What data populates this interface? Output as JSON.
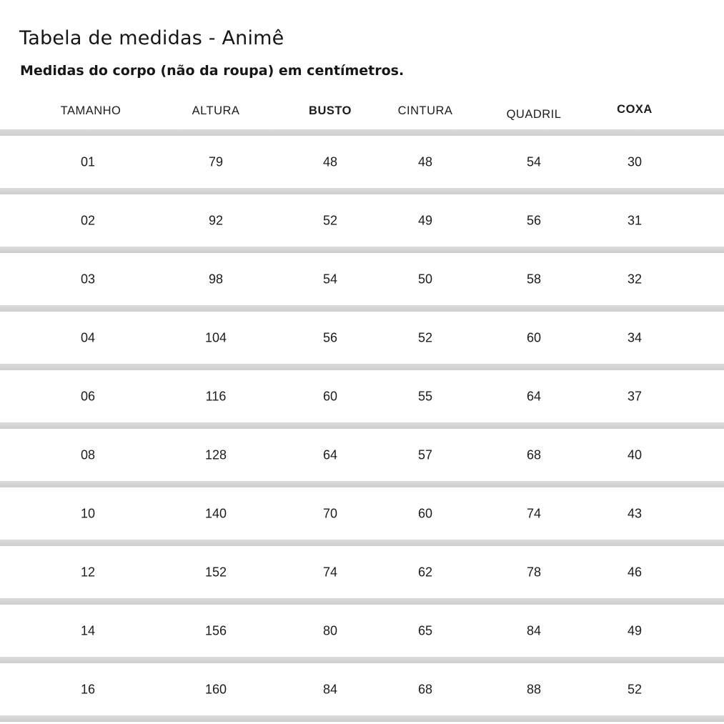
{
  "page": {
    "title": "Tabela de medidas - Animê",
    "subtitle": "Medidas do corpo (não da roupa) em centímetros."
  },
  "chart_data": {
    "type": "table",
    "title": "Tabela de medidas - Animê",
    "subtitle": "Medidas do corpo (não da roupa) em centímetros.",
    "columns": [
      "TAMANHO",
      "ALTURA",
      "BUSTO",
      "CINTURA",
      "QUADRIL",
      "COXA"
    ],
    "rows": [
      [
        "01",
        "79",
        "48",
        "48",
        "54",
        "30"
      ],
      [
        "02",
        "92",
        "52",
        "49",
        "56",
        "31"
      ],
      [
        "03",
        "98",
        "54",
        "50",
        "58",
        "32"
      ],
      [
        "04",
        "104",
        "56",
        "52",
        "60",
        "34"
      ],
      [
        "06",
        "116",
        "60",
        "55",
        "64",
        "37"
      ],
      [
        "08",
        "128",
        "64",
        "57",
        "68",
        "40"
      ],
      [
        "10",
        "140",
        "70",
        "60",
        "74",
        "43"
      ],
      [
        "12",
        "152",
        "74",
        "62",
        "78",
        "46"
      ],
      [
        "14",
        "156",
        "80",
        "65",
        "84",
        "49"
      ],
      [
        "16",
        "160",
        "84",
        "68",
        "88",
        "52"
      ]
    ],
    "layout": {
      "grid": "horizontal-separators",
      "separator_color": "#d4d4d4",
      "background": "#ffffff",
      "bold_columns": [
        "BUSTO",
        "COXA"
      ]
    }
  }
}
